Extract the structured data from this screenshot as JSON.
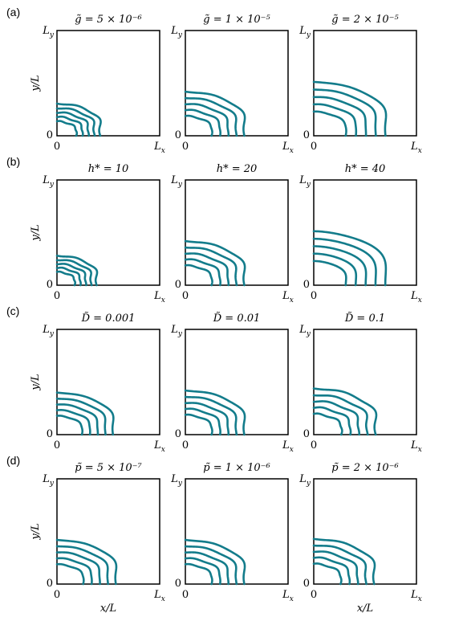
{
  "figure": {
    "curve_color": "#137c8b",
    "axis_ticks": {
      "y_top": "L",
      "y_top_sub": "y",
      "x_right": "L",
      "x_right_sub": "x",
      "origin": "0"
    },
    "ylabel": "y/L",
    "xlabel": "x/L",
    "rows": [
      {
        "label": "(a)",
        "panels": [
          {
            "title": "g̃ = 5 × 10⁻⁶",
            "extent": 0.6,
            "wiggle": 0.55,
            "freq": 5
          },
          {
            "title": "g̃ = 1 × 10⁻⁵",
            "extent": 0.82,
            "wiggle": 0.35,
            "freq": 5
          },
          {
            "title": "g̃ = 2 × 10⁻⁵",
            "extent": 1.0,
            "wiggle": 0.18,
            "freq": 5
          }
        ]
      },
      {
        "label": "(b)",
        "panels": [
          {
            "title": "h* = 10",
            "extent": 0.55,
            "wiggle": 0.55,
            "freq": 5
          },
          {
            "title": "h* = 20",
            "extent": 0.82,
            "wiggle": 0.35,
            "freq": 5
          },
          {
            "title": "h* = 40",
            "extent": 1.0,
            "wiggle": 0.05,
            "freq": 3
          }
        ]
      },
      {
        "label": "(c)",
        "panels": [
          {
            "title": "D̃ = 0.001",
            "extent": 0.78,
            "wiggle": 0.25,
            "freq": 5
          },
          {
            "title": "D̃ = 0.01",
            "extent": 0.82,
            "wiggle": 0.32,
            "freq": 5
          },
          {
            "title": "D̃ = 0.1",
            "extent": 0.86,
            "wiggle": 0.45,
            "freq": 5
          }
        ]
      },
      {
        "label": "(d)",
        "panels": [
          {
            "title": "p̃ = 5 × 10⁻⁷",
            "extent": 0.82,
            "wiggle": 0.25,
            "freq": 5
          },
          {
            "title": "p̃ = 1 × 10⁻⁶",
            "extent": 0.82,
            "wiggle": 0.3,
            "freq": 5
          },
          {
            "title": "p̃ = 2 × 10⁻⁶",
            "extent": 0.84,
            "wiggle": 0.38,
            "freq": 5
          }
        ]
      }
    ]
  }
}
